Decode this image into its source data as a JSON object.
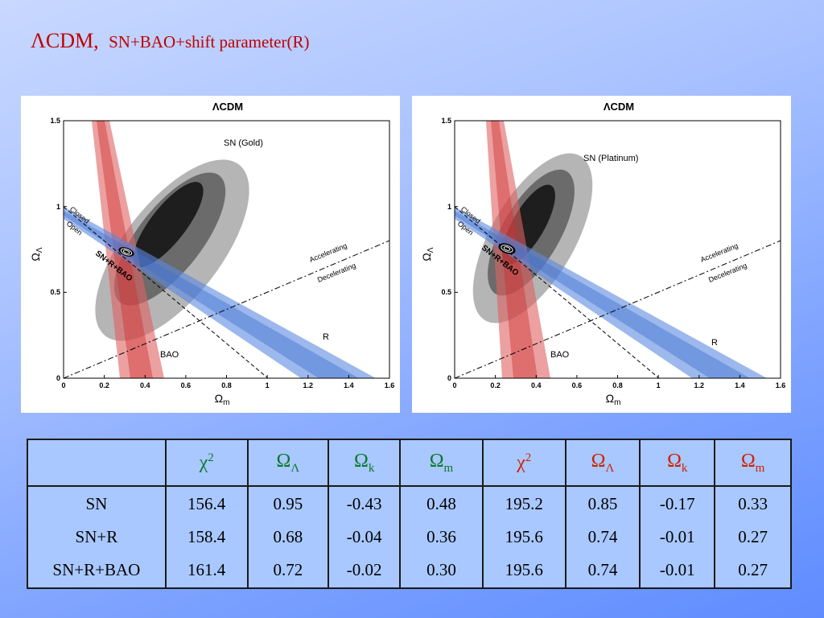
{
  "slide": {
    "title_main": "ΛCDM,",
    "title_sub": "SN+BAO+shift parameter(R)"
  },
  "plots": [
    {
      "title": "ΛCDM",
      "sn_label": "SN (Gold)",
      "xlabel": "Ω",
      "xlabel_sub": "m",
      "ylabel": "Ω",
      "ylabel_sub": "Λ",
      "xticks": [
        "0",
        "0.2",
        "0.4",
        "0.6",
        "0.8",
        "1",
        "1.2",
        "1.4",
        "1.6"
      ],
      "yticks": [
        "0",
        "0.5",
        "1",
        "1.5"
      ],
      "labels": {
        "closed": "Closed",
        "open": "Open",
        "accelerating": "Accelerating",
        "decelerating": "Decelerating",
        "snrbao": "SN+R+BAO",
        "bao": "BAO",
        "r": "R"
      }
    },
    {
      "title": "ΛCDM",
      "sn_label": "SN (Platinum)",
      "xlabel": "Ω",
      "xlabel_sub": "m",
      "ylabel": "Ω",
      "ylabel_sub": "Λ",
      "xticks": [
        "0",
        "0.2",
        "0.4",
        "0.6",
        "0.8",
        "1",
        "1.2",
        "1.4",
        "1.6"
      ],
      "yticks": [
        "0",
        "0.5",
        "1",
        "1.5"
      ],
      "labels": {
        "closed": "Closed",
        "open": "Open",
        "accelerating": "Accelerating",
        "decelerating": "Decelerating",
        "snrbao": "SN+R+BAO",
        "bao": "BAO",
        "r": "R"
      }
    }
  ],
  "table": {
    "headers": [
      {
        "sym": "χ",
        "sup": "2",
        "sub": "",
        "color": "green"
      },
      {
        "sym": "Ω",
        "sup": "",
        "sub": "Λ",
        "color": "green"
      },
      {
        "sym": "Ω",
        "sup": "",
        "sub": "k",
        "color": "green"
      },
      {
        "sym": "Ω",
        "sup": "",
        "sub": "m",
        "color": "green"
      },
      {
        "sym": "χ",
        "sup": "2",
        "sub": "",
        "color": "red"
      },
      {
        "sym": "Ω",
        "sup": "",
        "sub": "Λ",
        "color": "red"
      },
      {
        "sym": "Ω",
        "sup": "",
        "sub": "k",
        "color": "red"
      },
      {
        "sym": "Ω",
        "sup": "",
        "sub": "m",
        "color": "red"
      }
    ],
    "rows": [
      "SN",
      "SN+R",
      "SN+R+BAO"
    ],
    "columns": [
      [
        "156.4",
        "158.4",
        "161.4"
      ],
      [
        "0.95",
        "0.68",
        "0.72"
      ],
      [
        "-0.43",
        "-0.04",
        "-0.02"
      ],
      [
        "0.48",
        "0.36",
        "0.30"
      ],
      [
        "195.2",
        "195.6",
        "195.6"
      ],
      [
        "0.85",
        "0.74",
        "0.74"
      ],
      [
        "-0.17",
        "-0.01",
        "-0.01"
      ],
      [
        "0.33",
        "0.27",
        "0.27"
      ]
    ]
  },
  "colors": {
    "title": "#c00000",
    "green_header": "#0a7a2a",
    "red_header": "#cc2200",
    "table_bg": "#a9c8ff",
    "bao_band": "#e06060",
    "r_band": "#5a88e0"
  }
}
